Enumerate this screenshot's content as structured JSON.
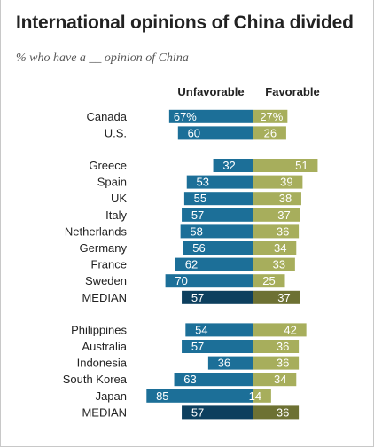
{
  "title": "International opinions of China divided",
  "subtitle": "% who have a __ opinion of China",
  "chart_data": {
    "type": "bar",
    "title": "International opinions of China divided",
    "subtitle": "% who have a __ opinion of China",
    "column_headers": [
      "Unfavorable",
      "Favorable"
    ],
    "colors": {
      "unfavorable": "#1c6f98",
      "favorable": "#a7ae5c",
      "unfavorable_median": "#0d3f5e",
      "favorable_median": "#6d7133"
    },
    "groups": [
      {
        "rows": [
          {
            "label": "Canada",
            "unfavorable": 67,
            "favorable": 27,
            "unfavorable_text": "67%",
            "favorable_text": "27%"
          },
          {
            "label": "U.S.",
            "unfavorable": 60,
            "favorable": 26,
            "unfavorable_text": "60",
            "favorable_text": "26"
          }
        ]
      },
      {
        "rows": [
          {
            "label": "Greece",
            "unfavorable": 32,
            "favorable": 51,
            "unfavorable_text": "32",
            "favorable_text": "51"
          },
          {
            "label": "Spain",
            "unfavorable": 53,
            "favorable": 39,
            "unfavorable_text": "53",
            "favorable_text": "39"
          },
          {
            "label": "UK",
            "unfavorable": 55,
            "favorable": 38,
            "unfavorable_text": "55",
            "favorable_text": "38"
          },
          {
            "label": "Italy",
            "unfavorable": 57,
            "favorable": 37,
            "unfavorable_text": "57",
            "favorable_text": "37"
          },
          {
            "label": "Netherlands",
            "unfavorable": 58,
            "favorable": 36,
            "unfavorable_text": "58",
            "favorable_text": "36"
          },
          {
            "label": "Germany",
            "unfavorable": 56,
            "favorable": 34,
            "unfavorable_text": "56",
            "favorable_text": "34"
          },
          {
            "label": "France",
            "unfavorable": 62,
            "favorable": 33,
            "unfavorable_text": "62",
            "favorable_text": "33"
          },
          {
            "label": "Sweden",
            "unfavorable": 70,
            "favorable": 25,
            "unfavorable_text": "70",
            "favorable_text": "25"
          },
          {
            "label": "MEDIAN",
            "unfavorable": 57,
            "favorable": 37,
            "unfavorable_text": "57",
            "favorable_text": "37",
            "median": true
          }
        ]
      },
      {
        "rows": [
          {
            "label": "Philippines",
            "unfavorable": 54,
            "favorable": 42,
            "unfavorable_text": "54",
            "favorable_text": "42"
          },
          {
            "label": "Australia",
            "unfavorable": 57,
            "favorable": 36,
            "unfavorable_text": "57",
            "favorable_text": "36"
          },
          {
            "label": "Indonesia",
            "unfavorable": 36,
            "favorable": 36,
            "unfavorable_text": "36",
            "favorable_text": "36"
          },
          {
            "label": "South Korea",
            "unfavorable": 63,
            "favorable": 34,
            "unfavorable_text": "63",
            "favorable_text": "34"
          },
          {
            "label": "Japan",
            "unfavorable": 85,
            "favorable": 14,
            "unfavorable_text": "85",
            "favorable_text": "14"
          },
          {
            "label": "MEDIAN",
            "unfavorable": 57,
            "favorable": 36,
            "unfavorable_text": "57",
            "favorable_text": "36",
            "median": true
          }
        ]
      }
    ]
  }
}
